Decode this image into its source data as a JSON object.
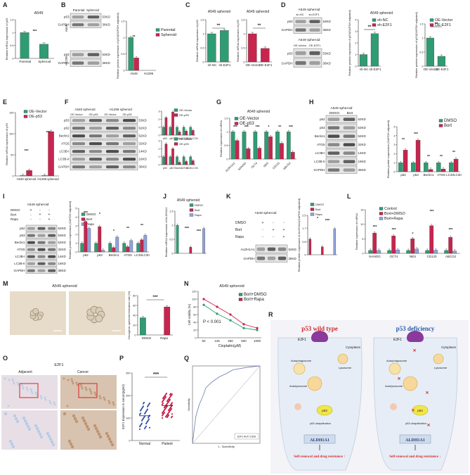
{
  "panels": {
    "A": {
      "letter": "A",
      "title": "A549",
      "ylabel": "Relative mRNA expression of p53",
      "categories": [
        "Parental",
        "Spheroid"
      ],
      "values": [
        1.0,
        0.55
      ],
      "sig": "***"
    },
    "B": {
      "letter": "B",
      "blot_headers": [
        "Parental",
        "Spheroid"
      ],
      "side_labels": [
        "A549",
        "H1299"
      ],
      "bands": [
        "p53",
        "GAPDH",
        "p53",
        "GAPDH"
      ],
      "kda": [
        "53KD",
        "36KD",
        "53KD",
        "36KD"
      ],
      "legend": [
        "Parental",
        "Spheroid"
      ],
      "ylabel": "Relative protein expression of p53(GAPDH adjusted)",
      "categories": [
        "A549",
        "H1299"
      ],
      "values": [
        [
          1.0,
          0.38
        ],
        [
          0,
          0
        ]
      ],
      "sig": "**"
    },
    "C": {
      "letter": "C",
      "titles": [
        "A549 spheroid",
        "A549 spheroid"
      ],
      "ylabels": [
        "Relative mRNA expression of p53",
        "Relative mRNA expression of p53"
      ],
      "left": {
        "categories": [
          "sh-NC",
          "sh-E2F1"
        ],
        "values": [
          1.0,
          1.12
        ],
        "sig": "**"
      },
      "right": {
        "categories": [
          "OE-Vector",
          "OE-E2F1"
        ],
        "values": [
          1.0,
          0.48
        ],
        "sig": "**"
      }
    },
    "D": {
      "letter": "D",
      "blot_titles": [
        "A549 spheroid",
        "A549 spheroid"
      ],
      "blot_headers1": [
        "sh-NC",
        "sh-E2F1"
      ],
      "blot_headers2": [
        "OE-Vector",
        "OE-E2F1"
      ],
      "bands": [
        "p53",
        "GAPDH",
        "p53",
        "GAPDH"
      ],
      "kda": [
        "53KD",
        "36KD",
        "53KD",
        "36KD"
      ],
      "titles": [
        "A549 spheroid",
        "A549 spheroid"
      ],
      "legend1": [
        "sh-NC",
        "sh-E2F1"
      ],
      "legend2": [
        "OE-Vector",
        "OE-E2F1"
      ],
      "ylabels": [
        "Relative protein expression of p53(GAPDH adjusted)",
        "Relative protein expression of p53(GAPDH adjusted)"
      ],
      "left": {
        "categories": [
          "sh-NC",
          "sh-E2F1"
        ],
        "values": [
          1.0,
          2.8
        ],
        "sig": "**"
      },
      "right": {
        "categories": [
          "OE-Vector",
          "OE-E2F1"
        ],
        "values": [
          1.0,
          0.35
        ],
        "sig": "**"
      }
    },
    "E": {
      "letter": "E",
      "legend": [
        "OE-Vector",
        "OE-p53"
      ],
      "ylabel": "Relative mRNA expression of p53",
      "categories": [
        "A549 spheroid",
        "H1299 spheroid"
      ],
      "values": [
        [
          1,
          13
        ],
        [
          1,
          105
        ]
      ],
      "sig": [
        "***",
        "***"
      ]
    },
    "F": {
      "letter": "F",
      "blot_titles": [
        "A549 spheroid",
        "H1299 spheroid"
      ],
      "headers": [
        "OE-Vector",
        "OE-p53",
        "OE-Vector",
        "OE-p53"
      ],
      "bands": [
        "p53",
        "p62",
        "Beclin1",
        "ATG5",
        "LC3B-I",
        "LC3B-II",
        "GAPDH"
      ],
      "kda": [
        "53KD",
        "62KD",
        "52KD",
        "32KD",
        "14KD",
        "16KD",
        "36KD"
      ],
      "legend": [
        "OE-Vector",
        "OE-p53"
      ],
      "categories": [
        "p53",
        "p62",
        "Beclin1",
        "ATG5",
        "LC3I/LC3II"
      ]
    },
    "G": {
      "letter": "G",
      "title": "A549 spheroid",
      "legend": [
        "OE-Vector",
        "OE-p53"
      ],
      "ylabel": "Relative expression of mRNA",
      "categories": [
        "ALDH1A1",
        "NANOG",
        "OCT4",
        "NES",
        "CD133",
        "ABCG2"
      ],
      "sig": [
        "***",
        "***",
        "***",
        "*",
        "**",
        "***"
      ]
    },
    "H": {
      "letter": "H",
      "blot_title": "A549 spheroid",
      "headers": [
        "DMSO",
        "Bort"
      ],
      "bands": [
        "p62",
        "p53",
        "Beclin1",
        "ATG5",
        "LC3B-I",
        "LC3B-II",
        "GAPDH"
      ],
      "kda": [
        "62KD",
        "53KD",
        "52KD",
        "32KD",
        "14KD",
        "16KD",
        "36KD"
      ],
      "legend": [
        "DMSO",
        "Bort"
      ],
      "ylabel": "Relative protein expression (GAPDH adjusted)",
      "categories": [
        "p62",
        "p53",
        "Beclin1",
        "ATG5",
        "LC3I/LC3II"
      ],
      "sig": [
        "**",
        "***",
        "**",
        "**",
        "**"
      ]
    },
    "I": {
      "letter": "I",
      "blot_title": "A549 spheroid",
      "rows": [
        "DMSO",
        "Bort",
        "Rapa"
      ],
      "bands": [
        "p62",
        "p53",
        "Beclin1",
        "ATG5",
        "LC3B-I",
        "LC3B-II",
        "GAPDH"
      ],
      "kda": [
        "62KD",
        "53KD",
        "52KD",
        "32KD",
        "14KD",
        "16KD",
        "36KD"
      ],
      "legend": [
        "DMSO",
        "Bort",
        "Rapa"
      ],
      "ylabel": "Relative protein expression (GAPDH adjusted)",
      "categories": [
        "p62",
        "p53",
        "Beclin1",
        "ATG5",
        "LC3I/LC3II"
      ]
    },
    "J": {
      "letter": "J",
      "title": "A549 spheroid",
      "rows": [
        "DMSO",
        "Bort",
        "Rapa"
      ],
      "ylabel": "Relative mRNA expression of ALDH1A1",
      "sig": [
        "***",
        "***"
      ]
    },
    "K": {
      "letter": "K",
      "blot_title": "A549 spheroid",
      "rows": [
        "DMSO",
        "Bort",
        "Rapa"
      ],
      "bands": [
        "ALDH1A1",
        "GAPDH"
      ],
      "kda": [
        "52KD",
        "36KD"
      ],
      "ylabel": "Relative protein expression of ALDH1A1(GAPDH adjusted)",
      "sig": [
        "*",
        "***"
      ]
    },
    "L": {
      "letter": "L",
      "legend": [
        "Control",
        "Bort+DMSO",
        "Bort+Rapa"
      ],
      "ylabel": "Relative expression of mRNA",
      "categories": [
        "NANOG",
        "OCT4",
        "NES",
        "CD133",
        "ABCG2"
      ],
      "sig": [
        "***",
        "***",
        "*",
        "***",
        "***"
      ]
    },
    "M": {
      "letter": "M",
      "title": "A549 spheroid",
      "photo_labels": [
        "Bort+DMSO",
        "Bort+Rapa"
      ],
      "ylabel": "Oncogenic spheroid formation rate (%)",
      "categories": [
        "DMSO",
        "Rapa"
      ],
      "values": [
        35,
        57
      ],
      "sig": "***"
    },
    "N": {
      "letter": "N",
      "title": "A549 spheroid",
      "legend": [
        "Bort+DMSO",
        "Bort+Rapa"
      ],
      "ylabel": "Cell viability (%)",
      "xlabel": "Cisplatin(μM)",
      "pvalue": "P < 0.001"
    },
    "O": {
      "letter": "O",
      "title": "E2F1",
      "photo_labels": [
        "Adjacent",
        "Cancer"
      ]
    },
    "P": {
      "letter": "P",
      "ylabel": "E2F1 Expression in serum(pg/ml)",
      "categories": [
        "Normal",
        "Patient"
      ],
      "sig": "***"
    },
    "Q": {
      "letter": "Q",
      "xlabel": "1 - Specificity",
      "ylabel": "Sensitivity",
      "legend": "E2F1 AUC 0.826"
    },
    "R": {
      "letter": "R",
      "left_title": "p53 wild type",
      "right_title": "p53 deficiency",
      "labels": [
        "E2F1",
        "Cytoplasm",
        "Autophagosome",
        "Lysosome",
        "Autolysosome",
        "p53",
        "p53 ubiquitination",
        "ALDH1A1"
      ],
      "left_bottom": "Self-renewal and drug resistance ↑",
      "right_bottom": "Self-renewal and drug resistance ↓"
    }
  },
  "chart_data": [
    {
      "type": "bar",
      "panel": "A",
      "categories": [
        "Parental",
        "Spheroid"
      ],
      "values": [
        1.0,
        0.55
      ],
      "ylim": [
        0,
        1.5
      ]
    },
    {
      "type": "bar",
      "panel": "B",
      "categories": [
        "A549",
        "H1299"
      ],
      "series": [
        {
          "name": "Parental",
          "values": [
            1.0,
            0
          ]
        },
        {
          "name": "Spheroid",
          "values": [
            0.38,
            0
          ]
        }
      ],
      "ylim": [
        0,
        1.5
      ]
    },
    {
      "type": "bar",
      "panel": "C-left",
      "categories": [
        "sh-NC",
        "sh-E2F1"
      ],
      "values": [
        1.0,
        1.12
      ],
      "ylim": [
        0,
        1.5
      ]
    },
    {
      "type": "bar",
      "panel": "C-right",
      "categories": [
        "OE-Vector",
        "OE-E2F1"
      ],
      "values": [
        1.0,
        0.48
      ],
      "ylim": [
        0,
        1.5
      ]
    },
    {
      "type": "bar",
      "panel": "D-left",
      "categories": [
        "sh-NC",
        "sh-E2F1"
      ],
      "values": [
        1.0,
        2.8
      ],
      "ylim": [
        0,
        4
      ]
    },
    {
      "type": "bar",
      "panel": "D-right",
      "categories": [
        "OE-Vector",
        "OE-E2F1"
      ],
      "values": [
        1.0,
        0.35
      ],
      "ylim": [
        0,
        1.5
      ]
    },
    {
      "type": "bar",
      "panel": "E",
      "categories": [
        "A549 spheroid",
        "H1299 spheroid"
      ],
      "series": [
        {
          "name": "OE-Vector",
          "values": [
            1,
            1
          ]
        },
        {
          "name": "OE-p53",
          "values": [
            13,
            105
          ]
        }
      ]
    },
    {
      "type": "bar",
      "panel": "G",
      "categories": [
        "ALDH1A1",
        "NANOG",
        "OCT4",
        "NES",
        "CD133",
        "ABCG2"
      ],
      "series": [
        {
          "name": "OE-Vector",
          "values": [
            1,
            1,
            1,
            1,
            1,
            1
          ]
        },
        {
          "name": "OE-p53",
          "values": [
            0.68,
            0.38,
            0.4,
            0.82,
            0.58,
            0.25
          ]
        }
      ],
      "ylim": [
        0,
        1.5
      ]
    },
    {
      "type": "bar",
      "panel": "H",
      "categories": [
        "p62",
        "p53",
        "Beclin1",
        "ATG5",
        "LC3I/LC3II"
      ],
      "series": [
        {
          "name": "DMSO",
          "values": [
            1,
            1,
            1,
            1,
            1
          ]
        },
        {
          "name": "Bort",
          "values": [
            2.4,
            3.5,
            0.25,
            0.3,
            1.4
          ]
        }
      ],
      "ylim": [
        0,
        5
      ]
    },
    {
      "type": "bar",
      "panel": "I",
      "categories": [
        "p62",
        "p53",
        "Beclin1",
        "ATG5",
        "LC3I/LC3II"
      ],
      "series": [
        {
          "name": "DMSO",
          "values": [
            1,
            1,
            1,
            1,
            1
          ]
        },
        {
          "name": "Bort",
          "values": [
            3.5,
            2.9,
            0.5,
            0.6,
            1.4
          ]
        },
        {
          "name": "Rapa",
          "values": [
            2.7,
            0.2,
            1.7,
            1.3,
            1.9
          ]
        }
      ],
      "ylim": [
        0,
        5
      ]
    },
    {
      "type": "bar",
      "panel": "J",
      "categories": [
        "DMSO",
        "Bort",
        "Rapa"
      ],
      "values": [
        1.0,
        0.22,
        0.88
      ],
      "ylim": [
        0,
        1.5
      ]
    },
    {
      "type": "bar",
      "panel": "K",
      "categories": [
        "DMSO",
        "Bort",
        "Rapa"
      ],
      "values": [
        1.0,
        0.5,
        1.65
      ],
      "ylim": [
        0,
        2.5
      ]
    },
    {
      "type": "bar",
      "panel": "L",
      "categories": [
        "NANOG",
        "OCT4",
        "NES",
        "CD133",
        "ABCG2"
      ],
      "series": [
        {
          "name": "Control",
          "values": [
            1,
            1,
            1,
            1,
            1
          ]
        },
        {
          "name": "Bort+DMSO",
          "values": [
            7,
            6,
            5,
            9.5,
            5.5
          ]
        },
        {
          "name": "Bort+Rapa",
          "values": [
            1,
            1.2,
            1.5,
            1.1,
            0.8
          ]
        }
      ],
      "ylim": [
        0,
        15
      ]
    },
    {
      "type": "bar",
      "panel": "M",
      "categories": [
        "DMSO",
        "Rapa"
      ],
      "values": [
        35,
        57
      ],
      "ylim": [
        0,
        80
      ]
    },
    {
      "type": "line",
      "panel": "N",
      "x": [
        50,
        125,
        250,
        500,
        1000
      ],
      "series": [
        {
          "name": "Bort+DMSO",
          "values": [
            85,
            62,
            45,
            25,
            20
          ]
        },
        {
          "name": "Bort+Rapa",
          "values": [
            100,
            80,
            60,
            35,
            25
          ]
        }
      ],
      "ylim": [
        0,
        120
      ]
    },
    {
      "type": "scatter",
      "panel": "P",
      "categories": [
        "Normal",
        "Patient"
      ],
      "means": [
        110,
        155
      ],
      "ylim": [
        0,
        300
      ]
    },
    {
      "type": "line",
      "panel": "Q",
      "x": [
        0,
        0.05,
        0.1,
        0.15,
        0.2,
        0.3,
        0.4,
        0.5,
        0.6,
        0.8,
        1
      ],
      "values": [
        0,
        0.35,
        0.5,
        0.6,
        0.72,
        0.8,
        0.86,
        0.9,
        0.95,
        0.98,
        1
      ],
      "xlim": [
        0,
        1
      ],
      "ylim": [
        0,
        1
      ]
    }
  ],
  "colors": {
    "green": "#2f9c73",
    "red": "#c7254e",
    "blue": "#8fa3d9",
    "lightblue": "#a8c6e6",
    "panelbg": "#f3f3f8",
    "wildtype": "#d42b2b",
    "deficiency": "#2a5caa"
  }
}
